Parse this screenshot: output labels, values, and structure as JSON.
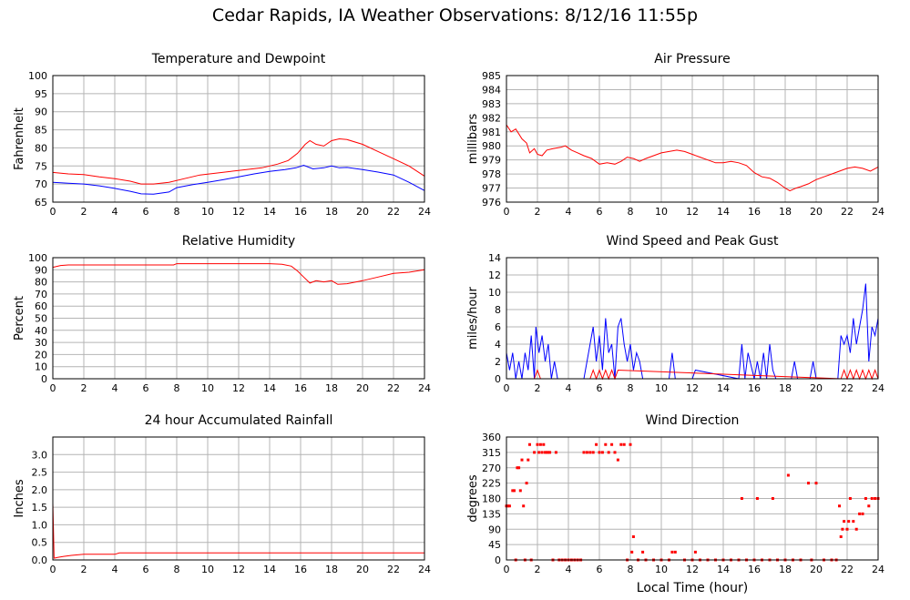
{
  "page": {
    "title": "Cedar Rapids, IA Weather Observations: 8/12/16 11:55p",
    "xlabel_bottom": "Local Time (hour)"
  },
  "colors": {
    "red": "#ff0000",
    "blue": "#0000ff",
    "grid": "#b4b4b4",
    "frame": "#000000"
  },
  "chart_data": [
    {
      "id": "temp",
      "type": "line",
      "title": "Temperature and Dewpoint",
      "ylabel": "Fahrenheit",
      "xlim": [
        0,
        24
      ],
      "ylim": [
        65,
        100
      ],
      "xticks": [
        0,
        2,
        4,
        6,
        8,
        10,
        12,
        14,
        16,
        18,
        20,
        22,
        24
      ],
      "yticks": [
        65,
        70,
        75,
        80,
        85,
        90,
        95,
        100
      ],
      "grid": true,
      "series": [
        {
          "color": "#ff0000",
          "x": [
            0,
            1,
            2,
            3,
            4,
            5,
            5.7,
            6.5,
            7.5,
            8.5,
            9.5,
            10.5,
            11.5,
            12.5,
            13.5,
            14.5,
            15.2,
            15.8,
            16.3,
            16.6,
            17,
            17.5,
            18,
            18.5,
            19,
            20,
            21,
            22,
            23,
            24
          ],
          "y": [
            73.2,
            72.8,
            72.6,
            72,
            71.5,
            70.8,
            70,
            70,
            70.5,
            71.5,
            72.5,
            73,
            73.5,
            74,
            74.5,
            75.5,
            76.5,
            78.5,
            81,
            82,
            81,
            80.5,
            82,
            82.5,
            82.3,
            81,
            79,
            77,
            75,
            72.2
          ]
        },
        {
          "color": "#0000ff",
          "x": [
            0,
            1,
            2,
            3,
            4,
            5,
            5.7,
            6.5,
            7.5,
            8,
            9,
            10,
            11,
            12,
            13,
            14,
            15,
            15.7,
            16.2,
            16.8,
            17.5,
            18,
            18.5,
            19,
            20,
            21,
            22,
            23,
            24
          ],
          "y": [
            70.5,
            70.2,
            70,
            69.5,
            68.8,
            68,
            67.3,
            67.2,
            67.8,
            69,
            69.8,
            70.5,
            71.2,
            72,
            72.8,
            73.5,
            74,
            74.5,
            75.2,
            74.2,
            74.5,
            75,
            74.5,
            74.6,
            74,
            73.3,
            72.5,
            70.5,
            68.2
          ]
        }
      ]
    },
    {
      "id": "pressure",
      "type": "line",
      "title": "Air Pressure",
      "ylabel": "millibars",
      "xlim": [
        0,
        24
      ],
      "ylim": [
        976,
        985
      ],
      "xticks": [
        0,
        2,
        4,
        6,
        8,
        10,
        12,
        14,
        16,
        18,
        20,
        22,
        24
      ],
      "yticks": [
        976,
        977,
        978,
        979,
        980,
        981,
        982,
        983,
        984,
        985
      ],
      "grid": true,
      "series": [
        {
          "color": "#ff0000",
          "x": [
            0,
            0.3,
            0.6,
            1,
            1.3,
            1.5,
            1.8,
            2,
            2.3,
            2.6,
            3,
            3.5,
            3.8,
            4.2,
            4.6,
            5,
            5.5,
            6,
            6.5,
            7,
            7.4,
            7.8,
            8.2,
            8.6,
            9,
            9.5,
            10,
            10.5,
            11,
            11.5,
            12,
            12.5,
            13,
            13.5,
            14,
            14.5,
            15,
            15.5,
            16,
            16.5,
            17,
            17.5,
            18,
            18.3,
            18.7,
            19,
            19.5,
            20,
            20.5,
            21,
            21.5,
            22,
            22.5,
            23,
            23.5,
            24
          ],
          "y": [
            981.5,
            981,
            981.2,
            980.5,
            980.2,
            979.5,
            979.8,
            979.4,
            979.3,
            979.7,
            979.8,
            979.9,
            980,
            979.7,
            979.5,
            979.3,
            979.1,
            978.7,
            978.8,
            978.7,
            978.9,
            979.2,
            979.1,
            978.9,
            979.1,
            979.3,
            979.5,
            979.6,
            979.7,
            979.6,
            979.4,
            979.2,
            979,
            978.8,
            978.8,
            978.9,
            978.8,
            978.6,
            978.1,
            977.8,
            977.7,
            977.4,
            977,
            976.8,
            977,
            977.1,
            977.3,
            977.6,
            977.8,
            978,
            978.2,
            978.4,
            978.5,
            978.4,
            978.2,
            978.5
          ]
        }
      ]
    },
    {
      "id": "humidity",
      "type": "line",
      "title": "Relative Humidity",
      "ylabel": "Percent",
      "xlim": [
        0,
        24
      ],
      "ylim": [
        0,
        100
      ],
      "xticks": [
        0,
        2,
        4,
        6,
        8,
        10,
        12,
        14,
        16,
        18,
        20,
        22,
        24
      ],
      "yticks": [
        0,
        10,
        20,
        30,
        40,
        50,
        60,
        70,
        80,
        90,
        100
      ],
      "grid": true,
      "series": [
        {
          "color": "#ff0000",
          "x": [
            0,
            0.5,
            1,
            2,
            4,
            6,
            7.8,
            8,
            10,
            12,
            14,
            14.8,
            15.4,
            15.8,
            16.2,
            16.6,
            17,
            17.5,
            18,
            18.4,
            19,
            20,
            21,
            22,
            23,
            24
          ],
          "y": [
            92,
            93.5,
            94,
            94,
            94,
            94,
            94,
            95,
            95,
            95,
            95,
            94.5,
            93,
            89,
            84,
            79,
            81,
            80,
            81,
            78,
            78.5,
            81,
            84,
            87,
            88,
            90
          ]
        }
      ]
    },
    {
      "id": "wind",
      "type": "line",
      "title": "Wind Speed and Peak Gust",
      "ylabel": "miles/hour",
      "xlim": [
        0,
        24
      ],
      "ylim": [
        0,
        14
      ],
      "xticks": [
        0,
        2,
        4,
        6,
        8,
        10,
        12,
        14,
        16,
        18,
        20,
        22,
        24
      ],
      "yticks": [
        0,
        2,
        4,
        6,
        8,
        10,
        12,
        14
      ],
      "grid": true,
      "series": [
        {
          "color": "#0000ff",
          "x": [
            0,
            0.2,
            0.4,
            0.6,
            0.8,
            1,
            1.2,
            1.4,
            1.6,
            1.8,
            1.9,
            2.1,
            2.3,
            2.5,
            2.7,
            2.9,
            3.1,
            3.3,
            5,
            5.2,
            5.4,
            5.6,
            5.8,
            6,
            6.2,
            6.4,
            6.6,
            6.8,
            7,
            7.2,
            7.4,
            7.6,
            7.8,
            8,
            8.2,
            8.4,
            8.6,
            8.8,
            10.5,
            10.7,
            10.9,
            12,
            12.2,
            15,
            15.2,
            15.4,
            15.6,
            16,
            16.2,
            16.4,
            16.6,
            16.8,
            17,
            17.2,
            17.4,
            18.4,
            18.6,
            18.8,
            19.6,
            19.8,
            20,
            21.4,
            21.6,
            21.8,
            22,
            22.2,
            22.4,
            22.6,
            22.8,
            23,
            23.2,
            23.4,
            23.6,
            23.8,
            24
          ],
          "y": [
            3,
            1,
            3,
            0,
            2,
            0,
            3,
            1,
            5,
            0,
            6,
            3,
            5,
            2,
            4,
            0,
            2,
            0,
            0,
            2,
            4,
            6,
            2,
            5,
            1,
            7,
            3,
            4,
            0,
            6,
            7,
            4,
            2,
            4,
            1,
            3,
            2,
            0,
            0,
            3,
            0,
            0,
            1,
            0,
            4,
            0,
            3,
            0,
            2,
            0,
            3,
            0,
            4,
            1,
            0,
            0,
            2,
            0,
            0,
            2,
            0,
            0,
            5,
            4,
            5,
            3,
            7,
            4,
            6,
            8,
            11,
            2,
            6,
            5,
            7
          ]
        },
        {
          "color": "#ff0000",
          "x": [
            0,
            1.8,
            2,
            2.2,
            5.4,
            5.6,
            5.8,
            6,
            6.2,
            6.4,
            6.6,
            6.8,
            7,
            7.2,
            21.6,
            21.8,
            22,
            22.2,
            22.4,
            22.6,
            22.8,
            23,
            23.2,
            23.4,
            23.6,
            23.8,
            24
          ],
          "y": [
            0,
            0,
            1,
            0,
            0,
            1,
            0,
            1,
            0,
            1,
            0,
            1,
            0,
            1,
            0,
            1,
            0,
            1,
            0,
            1,
            0,
            1,
            0,
            1,
            0,
            1,
            0
          ]
        }
      ]
    },
    {
      "id": "rain",
      "type": "line",
      "title": "24 hour Accumulated Rainfall",
      "ylabel": "Inches",
      "xlim": [
        0,
        24
      ],
      "ylim": [
        0,
        3.5
      ],
      "xticks": [
        0,
        2,
        4,
        6,
        8,
        10,
        12,
        14,
        16,
        18,
        20,
        22,
        24
      ],
      "yticks": [
        0,
        0.5,
        1.0,
        1.5,
        2.0,
        2.5,
        3.0
      ],
      "yticklabels": [
        "0.0",
        "0.5",
        "1.0",
        "1.5",
        "2.0",
        "2.5",
        "3.0"
      ],
      "grid": true,
      "series": [
        {
          "color": "#ff0000",
          "x": [
            0,
            0.08,
            0.3,
            0.7,
            1.2,
            2,
            3,
            4,
            4.3,
            5,
            8,
            12,
            16,
            20,
            24
          ],
          "y": [
            1.62,
            0.05,
            0.07,
            0.1,
            0.13,
            0.16,
            0.16,
            0.16,
            0.2,
            0.2,
            0.2,
            0.2,
            0.2,
            0.2,
            0.2
          ]
        }
      ]
    },
    {
      "id": "direction",
      "type": "scatter",
      "title": "Wind Direction",
      "ylabel": "degrees",
      "xlabel": "Local Time (hour)",
      "xlim": [
        0,
        24
      ],
      "ylim": [
        0,
        360
      ],
      "xticks": [
        0,
        2,
        4,
        6,
        8,
        10,
        12,
        14,
        16,
        18,
        20,
        22,
        24
      ],
      "yticks": [
        0,
        45,
        90,
        135,
        180,
        225,
        270,
        315,
        360
      ],
      "grid": true,
      "series": [
        {
          "color": "#ff0000",
          "x": [
            0,
            0.1,
            0.2,
            0.4,
            0.5,
            0.6,
            0.7,
            0.8,
            0.9,
            1,
            1.1,
            1.2,
            1.3,
            1.4,
            1.5,
            1.6,
            1.8,
            2,
            2.1,
            2.2,
            2.3,
            2.4,
            2.5,
            2.6,
            2.7,
            2.8,
            3,
            3.2,
            3.4,
            3.6,
            3.8,
            4,
            4.2,
            4.4,
            4.6,
            4.8,
            5,
            5.2,
            5.4,
            5.6,
            5.8,
            6,
            6.2,
            6.4,
            6.6,
            6.8,
            7,
            7.2,
            7.4,
            7.6,
            7.8,
            8,
            8.1,
            8.2,
            8.5,
            8.8,
            9,
            9.5,
            10,
            10.5,
            10.7,
            10.9,
            11.5,
            12,
            12.2,
            12.5,
            13,
            13.5,
            14,
            14.5,
            15,
            15.2,
            15.5,
            16,
            16.2,
            16.5,
            17,
            17.2,
            17.5,
            18,
            18.2,
            18.5,
            19,
            19.5,
            19.7,
            20,
            20.5,
            21,
            21.3,
            21.5,
            21.6,
            21.7,
            21.8,
            22,
            22.1,
            22.2,
            22.4,
            22.6,
            22.8,
            23,
            23.2,
            23.4,
            23.6,
            23.8,
            24
          ],
          "y": [
            158,
            158,
            158,
            203,
            203,
            0,
            270,
            270,
            203,
            293,
            158,
            0,
            225,
            293,
            338,
            0,
            315,
            338,
            315,
            338,
            315,
            338,
            315,
            315,
            315,
            315,
            0,
            315,
            0,
            0,
            0,
            0,
            0,
            0,
            0,
            0,
            315,
            315,
            315,
            315,
            338,
            315,
            315,
            338,
            315,
            338,
            315,
            293,
            338,
            338,
            0,
            338,
            23,
            68,
            0,
            23,
            0,
            0,
            0,
            0,
            23,
            23,
            0,
            0,
            23,
            0,
            0,
            0,
            0,
            0,
            0,
            180,
            0,
            0,
            180,
            0,
            0,
            180,
            0,
            0,
            248,
            0,
            0,
            225,
            0,
            225,
            0,
            0,
            0,
            158,
            68,
            90,
            113,
            90,
            113,
            180,
            113,
            90,
            135,
            135,
            180,
            158,
            180,
            180,
            180
          ]
        }
      ]
    }
  ]
}
